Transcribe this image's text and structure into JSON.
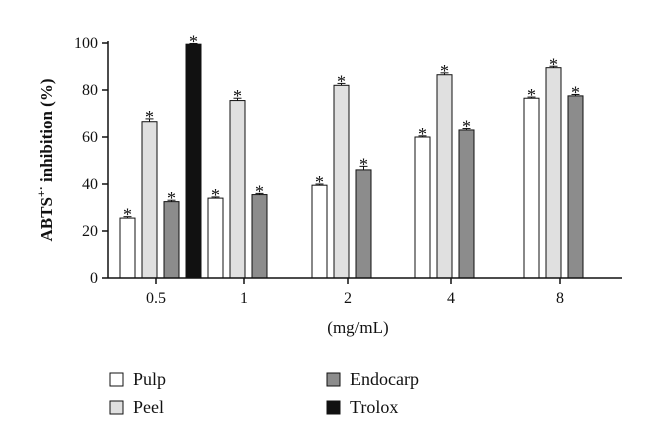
{
  "chart_data": {
    "type": "bar",
    "categories": [
      "0.5",
      "1",
      "2",
      "4",
      "8"
    ],
    "series": [
      {
        "name": "Pulp",
        "color": "#ffffff",
        "values": [
          25.5,
          34,
          39.5,
          60,
          76.5
        ],
        "errors": [
          0.6,
          0.5,
          0.5,
          0.5,
          0.5
        ]
      },
      {
        "name": "Peel",
        "color": "#e0e0e0",
        "values": [
          66.5,
          75.5,
          82,
          86.5,
          89.5
        ],
        "errors": [
          1.2,
          1.0,
          0.8,
          0.8,
          0.6
        ]
      },
      {
        "name": "Endocarp",
        "color": "#8c8c8c",
        "values": [
          32.5,
          35.5,
          46,
          63,
          77.5
        ],
        "errors": [
          0.6,
          0.5,
          1.5,
          0.6,
          0.6
        ]
      },
      {
        "name": "Trolox",
        "color": "#111111",
        "values": [
          99.5,
          null,
          null,
          null,
          null
        ],
        "errors": [
          0.3,
          null,
          null,
          null,
          null
        ]
      }
    ],
    "significance_marker": "*",
    "xlabel": "(mg/mL)",
    "ylabel_main": "ABTS",
    "ylabel_sup": "+·",
    "ylabel_rest": " inhibition (%)",
    "ylim": [
      0,
      100
    ],
    "yticks": [
      "0",
      "20",
      "40",
      "60",
      "80",
      "100"
    ],
    "legend_position": "bottom"
  }
}
